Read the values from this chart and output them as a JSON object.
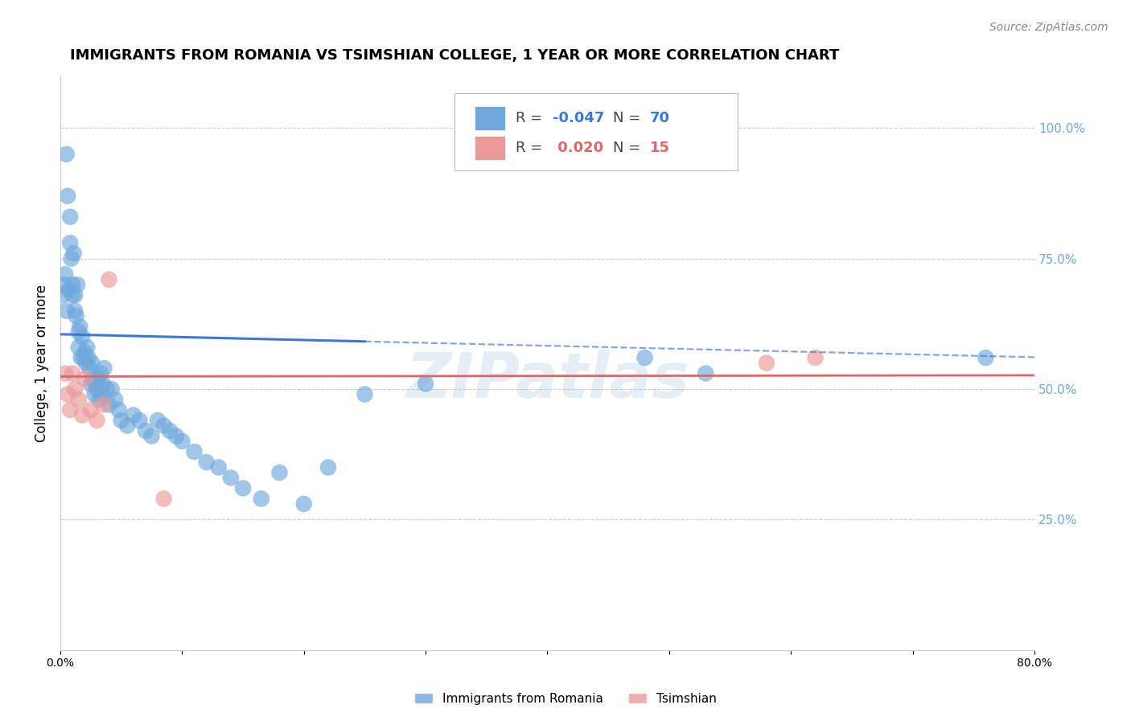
{
  "title": "IMMIGRANTS FROM ROMANIA VS TSIMSHIAN COLLEGE, 1 YEAR OR MORE CORRELATION CHART",
  "source": "Source: ZipAtlas.com",
  "ylabel": "College, 1 year or more",
  "xlim": [
    0.0,
    0.8
  ],
  "ylim": [
    0.0,
    1.1
  ],
  "yticks_right": [
    0.25,
    0.5,
    0.75,
    1.0
  ],
  "ytick_labels_right": [
    "25.0%",
    "50.0%",
    "75.0%",
    "100.0%"
  ],
  "xticks": [
    0.0,
    0.1,
    0.2,
    0.3,
    0.4,
    0.5,
    0.6,
    0.7,
    0.8
  ],
  "xtick_labels": [
    "0.0%",
    "",
    "",
    "",
    "",
    "",
    "",
    "",
    "80.0%"
  ],
  "grid_color": "#cccccc",
  "background_color": "#ffffff",
  "blue_color": "#6fa8dc",
  "pink_color": "#ea9999",
  "blue_line_color": "#3c78d8",
  "pink_line_color": "#e06666",
  "right_axis_color": "#6fa8dc",
  "legend_R1": "-0.047",
  "legend_N1": "70",
  "legend_R2": "0.020",
  "legend_N2": "15",
  "label1": "Immigrants from Romania",
  "label2": "Tsimshian",
  "watermark": "ZIPatlas",
  "blue_scatter_x": [
    0.002,
    0.003,
    0.004,
    0.005,
    0.005,
    0.006,
    0.007,
    0.008,
    0.008,
    0.009,
    0.01,
    0.01,
    0.011,
    0.012,
    0.012,
    0.013,
    0.014,
    0.015,
    0.015,
    0.016,
    0.017,
    0.018,
    0.019,
    0.02,
    0.021,
    0.022,
    0.023,
    0.024,
    0.025,
    0.026,
    0.027,
    0.028,
    0.029,
    0.03,
    0.031,
    0.032,
    0.033,
    0.034,
    0.035,
    0.036,
    0.038,
    0.04,
    0.042,
    0.045,
    0.048,
    0.05,
    0.055,
    0.06,
    0.065,
    0.07,
    0.075,
    0.08,
    0.085,
    0.09,
    0.095,
    0.1,
    0.11,
    0.12,
    0.13,
    0.14,
    0.15,
    0.165,
    0.18,
    0.2,
    0.22,
    0.25,
    0.3,
    0.48,
    0.53,
    0.76
  ],
  "blue_scatter_y": [
    0.68,
    0.7,
    0.72,
    0.95,
    0.65,
    0.87,
    0.69,
    0.83,
    0.78,
    0.75,
    0.7,
    0.68,
    0.76,
    0.65,
    0.68,
    0.64,
    0.7,
    0.61,
    0.58,
    0.62,
    0.56,
    0.6,
    0.56,
    0.57,
    0.55,
    0.58,
    0.56,
    0.54,
    0.51,
    0.55,
    0.52,
    0.49,
    0.51,
    0.5,
    0.52,
    0.48,
    0.53,
    0.49,
    0.51,
    0.54,
    0.5,
    0.47,
    0.5,
    0.48,
    0.46,
    0.44,
    0.43,
    0.45,
    0.44,
    0.42,
    0.41,
    0.44,
    0.43,
    0.42,
    0.41,
    0.4,
    0.38,
    0.36,
    0.35,
    0.33,
    0.31,
    0.29,
    0.34,
    0.28,
    0.35,
    0.49,
    0.51,
    0.56,
    0.53,
    0.56
  ],
  "pink_scatter_x": [
    0.004,
    0.006,
    0.008,
    0.01,
    0.012,
    0.015,
    0.018,
    0.02,
    0.025,
    0.03,
    0.035,
    0.04,
    0.085,
    0.58,
    0.62
  ],
  "pink_scatter_y": [
    0.53,
    0.49,
    0.46,
    0.53,
    0.5,
    0.48,
    0.45,
    0.52,
    0.46,
    0.44,
    0.47,
    0.71,
    0.29,
    0.55,
    0.56
  ],
  "blue_line_x0": 0.0,
  "blue_line_x1": 0.25,
  "blue_line_xd": 0.8,
  "blue_intercept": 0.605,
  "blue_slope": -0.055,
  "pink_intercept": 0.524,
  "pink_slope": 0.003
}
